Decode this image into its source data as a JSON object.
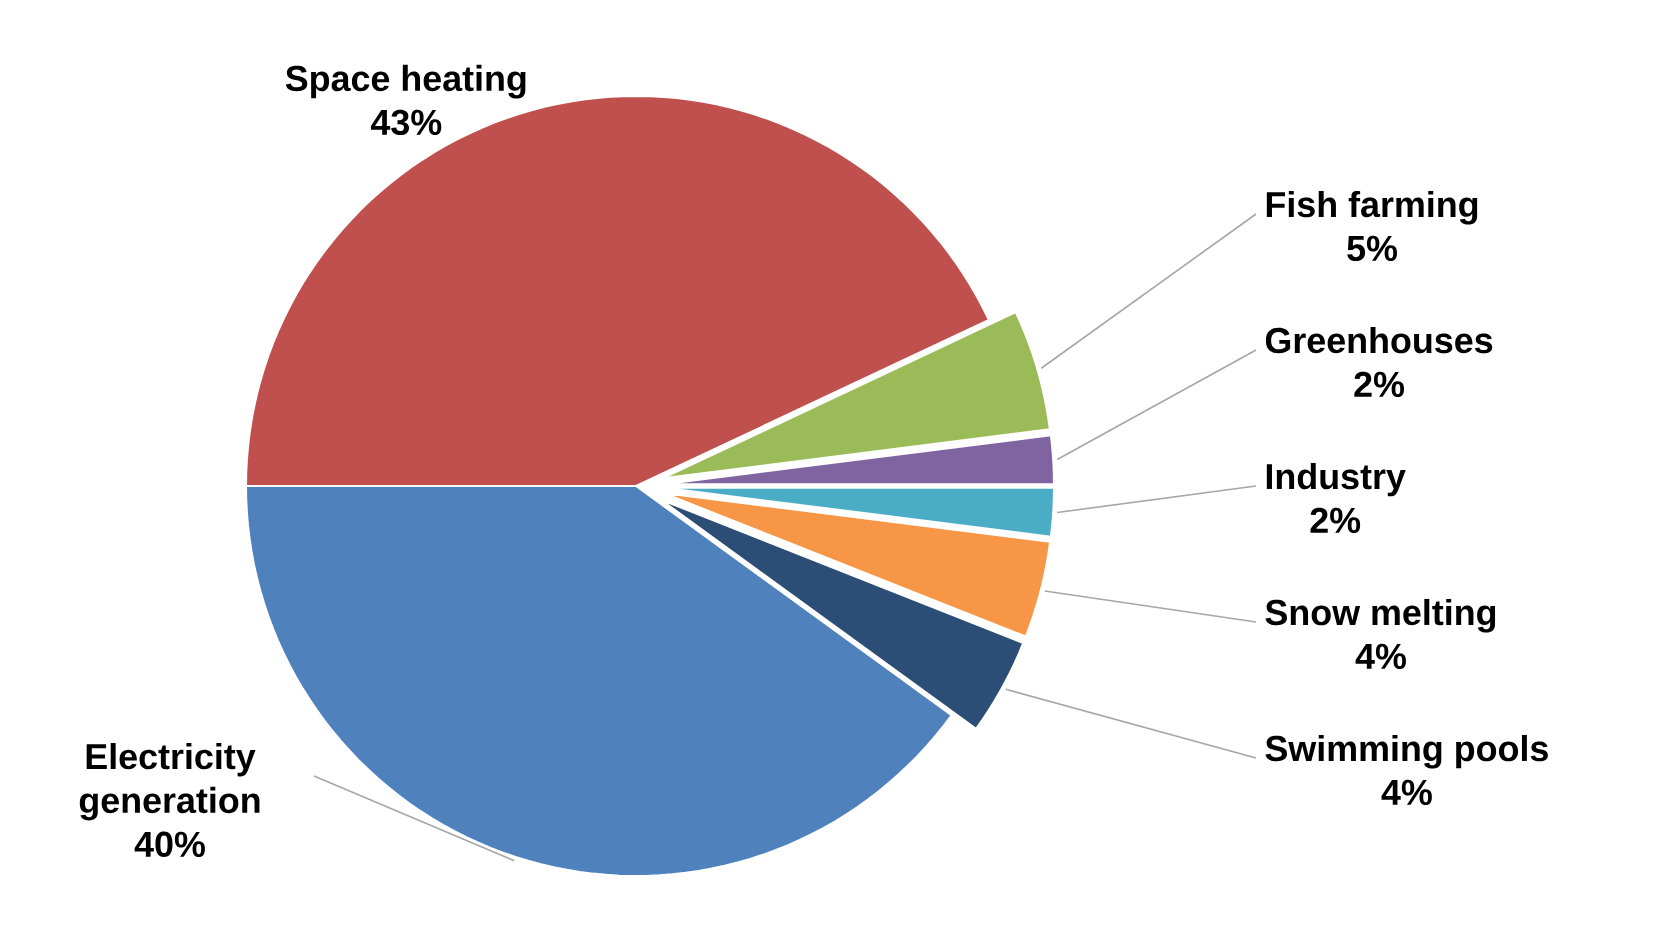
{
  "chart_data": {
    "type": "pie",
    "categories": [
      "Space heating",
      "Fish farming",
      "Greenhouses",
      "Industry",
      "Snow melting",
      "Swimming pools",
      "Electricity generation"
    ],
    "values": [
      43,
      5,
      2,
      2,
      4,
      4,
      40
    ],
    "value_labels": [
      "43%",
      "5%",
      "2%",
      "2%",
      "4%",
      "4%",
      "40%"
    ],
    "colors": [
      "#c0504d",
      "#9bbb59",
      "#8064a2",
      "#4bacc6",
      "#f79646",
      "#2c4d75",
      "#4f81bd"
    ]
  }
}
